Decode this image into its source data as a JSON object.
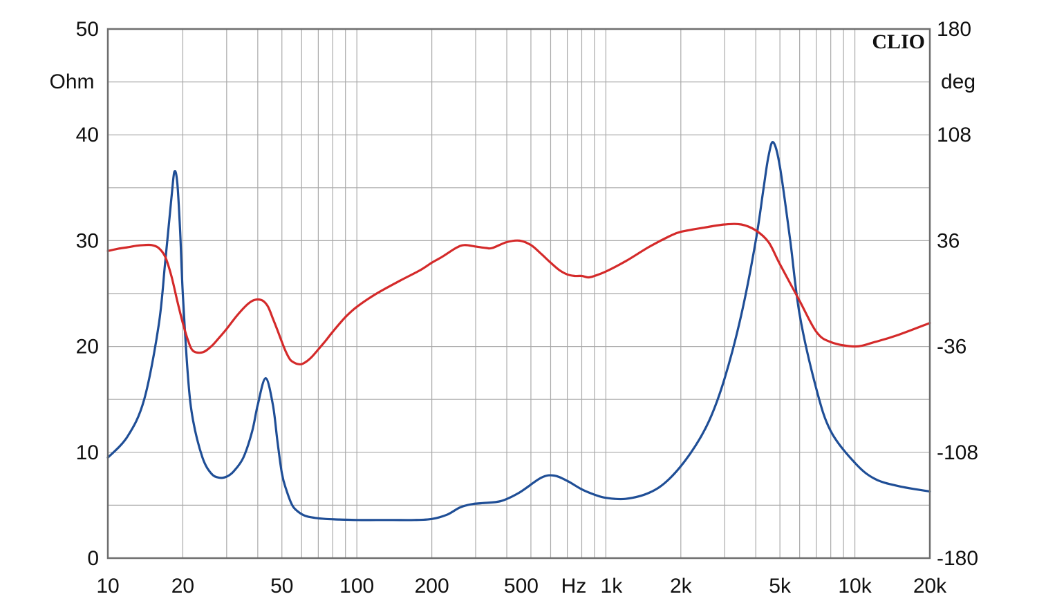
{
  "chart_data": {
    "type": "line",
    "brand_label": "CLIO",
    "x_scale": "log",
    "xlim": [
      10,
      20000
    ],
    "ylim_left": [
      0,
      50
    ],
    "ylim_right": [
      -180,
      180
    ],
    "left_unit": "Ohm",
    "right_unit": "deg",
    "grid": true,
    "x_ticks": [
      {
        "value": 10,
        "label": "10"
      },
      {
        "value": 20,
        "label": "20"
      },
      {
        "value": 50,
        "label": "50"
      },
      {
        "value": 100,
        "label": "100"
      },
      {
        "value": 200,
        "label": "200"
      },
      {
        "value": 500,
        "label": "500"
      },
      {
        "value": 1000,
        "label": "1k"
      },
      {
        "value": 2000,
        "label": "2k"
      },
      {
        "value": 5000,
        "label": "5k"
      },
      {
        "value": 10000,
        "label": "10k"
      },
      {
        "value": 20000,
        "label": "20k"
      }
    ],
    "x_unit_label": "Hz",
    "y_left_ticks": [
      {
        "value": 0,
        "label": "0"
      },
      {
        "value": 10,
        "label": "10"
      },
      {
        "value": 20,
        "label": "20"
      },
      {
        "value": 30,
        "label": "30"
      },
      {
        "value": 40,
        "label": "40"
      },
      {
        "value": 50,
        "label": "50"
      }
    ],
    "y_right_ticks": [
      {
        "value": -180,
        "label": "-180"
      },
      {
        "value": -108,
        "label": "-108"
      },
      {
        "value": -36,
        "label": "-36"
      },
      {
        "value": 36,
        "label": "36"
      },
      {
        "value": 108,
        "label": "108"
      },
      {
        "value": 180,
        "label": "180"
      }
    ],
    "series": [
      {
        "color": "#1f4e96",
        "axis": "left",
        "x": [
          10,
          12,
          14,
          16,
          17,
          18,
          18.5,
          19,
          19.5,
          20,
          21,
          22,
          24,
          26,
          28,
          30,
          32,
          35,
          38,
          40,
          43,
          46,
          48,
          50,
          52,
          55,
          58,
          62,
          68,
          75,
          85,
          100,
          120,
          140,
          170,
          200,
          230,
          260,
          290,
          320,
          380,
          450,
          550,
          620,
          700,
          800,
          900,
          1000,
          1200,
          1500,
          1800,
          2200,
          2600,
          3000,
          3500,
          4000,
          4300,
          4500,
          4700,
          5000,
          5500,
          6000,
          7000,
          8000,
          10000,
          12000,
          15000,
          20000
        ],
        "y": [
          9.5,
          11.5,
          15,
          22,
          28,
          34,
          36.5,
          35.5,
          31,
          25,
          17,
          13,
          9.5,
          8,
          7.6,
          7.7,
          8.2,
          9.5,
          12,
          14.5,
          17,
          14.5,
          11,
          8,
          6.5,
          5,
          4.4,
          4,
          3.8,
          3.7,
          3.65,
          3.6,
          3.6,
          3.6,
          3.6,
          3.7,
          4.1,
          4.8,
          5.1,
          5.2,
          5.4,
          6.2,
          7.6,
          7.8,
          7.3,
          6.5,
          6,
          5.7,
          5.6,
          6.2,
          7.5,
          10,
          13,
          17,
          23,
          30,
          35,
          38,
          39.3,
          37,
          30,
          23,
          16,
          12,
          9,
          7.5,
          6.8,
          6.3
        ]
      },
      {
        "color": "#d42a2a",
        "axis": "right",
        "x": [
          10,
          11,
          12,
          13,
          14,
          15,
          16,
          17,
          18,
          19,
          20,
          21,
          22,
          24,
          26,
          28,
          30,
          33,
          36,
          38,
          40,
          42,
          44,
          46,
          48,
          50,
          52,
          54,
          56,
          58,
          60,
          63,
          66,
          70,
          75,
          80,
          90,
          100,
          120,
          150,
          180,
          200,
          220,
          250,
          270,
          300,
          330,
          350,
          400,
          450,
          500,
          550,
          600,
          650,
          700,
          750,
          800,
          850,
          900,
          1000,
          1200,
          1500,
          1800,
          2000,
          2500,
          3000,
          3500,
          4000,
          4500,
          5000,
          6000,
          7000,
          8000,
          10000,
          12000,
          15000,
          20000
        ],
        "y": [
          29,
          30.5,
          31.5,
          32.5,
          33,
          33,
          31,
          25,
          12,
          -5,
          -20,
          -32,
          -39,
          -40,
          -36,
          -30,
          -24,
          -15,
          -8,
          -5,
          -4,
          -5,
          -9,
          -17,
          -25,
          -33,
          -40,
          -45,
          -47,
          -48,
          -48,
          -46,
          -43,
          -38,
          -32,
          -26,
          -16,
          -9,
          0,
          9,
          16,
          21,
          25,
          31,
          33,
          32,
          31,
          31,
          35,
          36,
          33,
          27,
          21,
          16,
          13,
          12,
          12,
          11,
          12,
          15,
          22,
          32,
          39,
          42,
          45,
          47,
          47,
          43,
          35,
          20,
          -5,
          -26,
          -33,
          -36,
          -33,
          -28,
          -20
        ]
      }
    ]
  }
}
